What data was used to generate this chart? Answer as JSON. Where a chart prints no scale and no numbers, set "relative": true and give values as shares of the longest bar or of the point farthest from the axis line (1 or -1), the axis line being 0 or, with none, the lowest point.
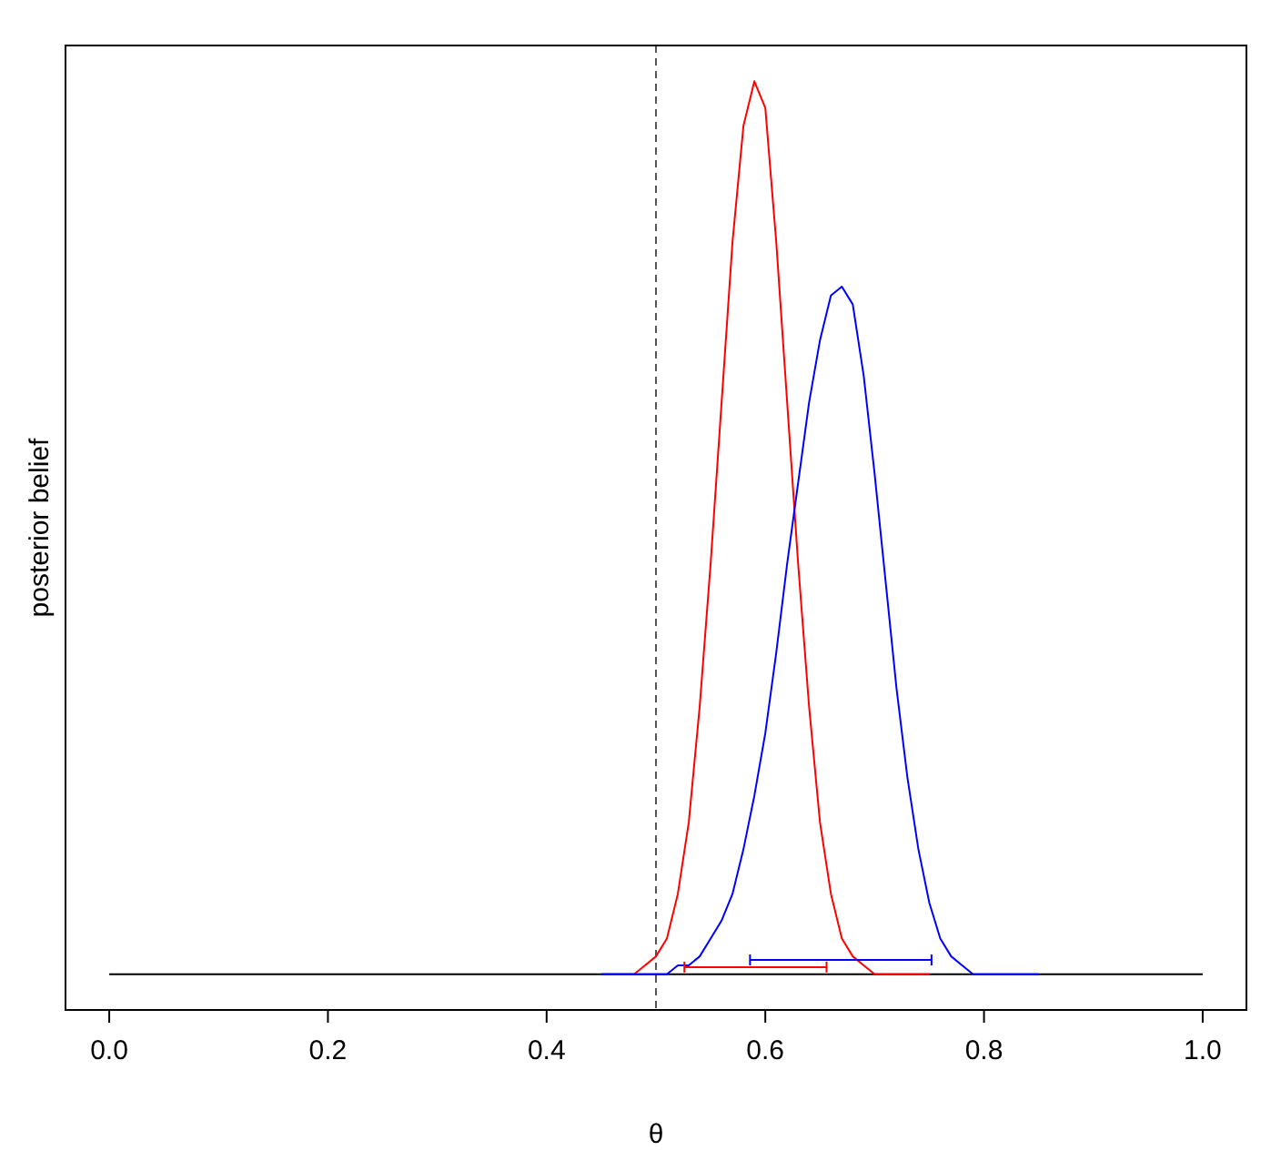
{
  "chart_data": {
    "type": "line",
    "xlabel": "θ",
    "ylabel": "posterior belief",
    "relative": true,
    "xlim": [
      -0.04,
      1.04
    ],
    "xticks": [
      {
        "value": 0,
        "label": "0.0"
      },
      0.2,
      0.4,
      0.6,
      0.8,
      {
        "value": 1,
        "label": "1.0"
      }
    ],
    "ref_lines": [
      {
        "axis": "y",
        "value": 0,
        "color": "#000000",
        "line_style": "solid"
      },
      {
        "axis": "x",
        "value": 0.5,
        "color": "#555555",
        "line_style": "dashed"
      }
    ],
    "series": [
      {
        "color": "#ff0000",
        "x": [
          0.45,
          0.48,
          0.49,
          0.5,
          0.51,
          0.52,
          0.53,
          0.54,
          0.55,
          0.56,
          0.57,
          0.58,
          0.59,
          0.6,
          0.61,
          0.62,
          0.63,
          0.64,
          0.65,
          0.66,
          0.67,
          0.68,
          0.69,
          0.7,
          0.75
        ],
        "values": [
          0,
          0,
          0.01,
          0.02,
          0.04,
          0.09,
          0.17,
          0.3,
          0.46,
          0.64,
          0.82,
          0.95,
          1,
          0.97,
          0.82,
          0.64,
          0.46,
          0.3,
          0.17,
          0.09,
          0.04,
          0.02,
          0.01,
          0,
          0
        ]
      },
      {
        "color": "#0000ff",
        "x": [
          0.45,
          0.51,
          0.52,
          0.53,
          0.54,
          0.55,
          0.56,
          0.57,
          0.58,
          0.59,
          0.6,
          0.61,
          0.62,
          0.63,
          0.64,
          0.65,
          0.66,
          0.67,
          0.68,
          0.69,
          0.7,
          0.71,
          0.72,
          0.73,
          0.74,
          0.75,
          0.76,
          0.77,
          0.78,
          0.79,
          0.8,
          0.85
        ],
        "values": [
          0,
          0,
          0.01,
          0.01,
          0.02,
          0.04,
          0.06,
          0.09,
          0.14,
          0.2,
          0.27,
          0.36,
          0.46,
          0.55,
          0.64,
          0.71,
          0.76,
          0.77,
          0.75,
          0.67,
          0.56,
          0.44,
          0.32,
          0.22,
          0.14,
          0.08,
          0.04,
          0.02,
          0.01,
          0,
          0,
          0
        ]
      },
      {
        "type": "line",
        "color": "#ff0000",
        "x": [
          0.526,
          0.656
        ],
        "values": [
          0.008,
          0.008
        ]
      },
      {
        "type": "line",
        "color": "#0000ff",
        "x": [
          0.586,
          0.752
        ],
        "values": [
          0.016,
          0.016
        ]
      }
    ]
  }
}
